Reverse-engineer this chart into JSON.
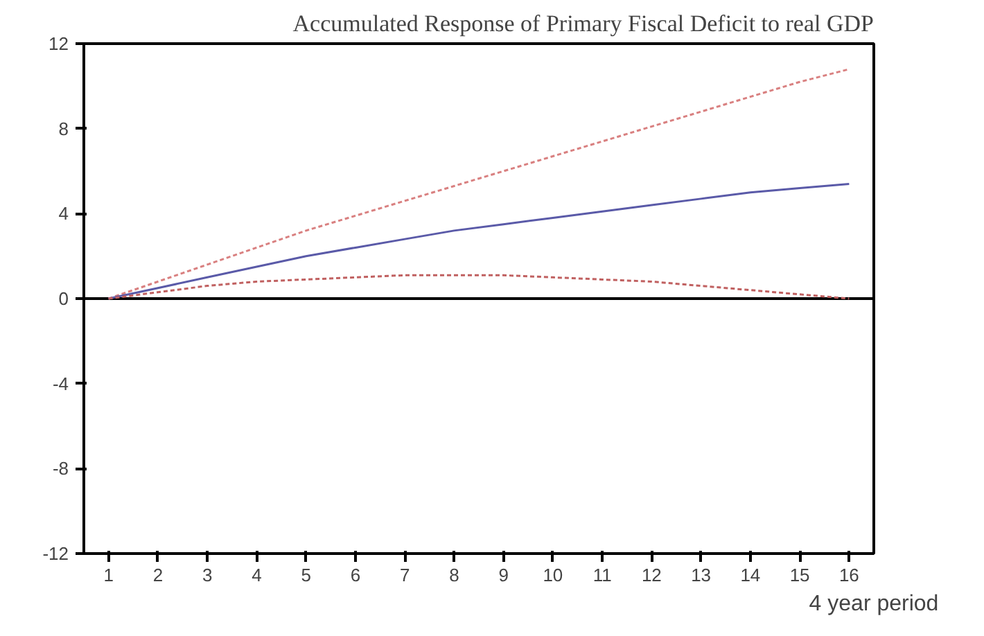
{
  "chart_data": {
    "type": "line",
    "title": "Accumulated Response of Primary Fiscal Deficit to real GDP",
    "xlabel": "4 year period",
    "x": [
      1,
      2,
      3,
      4,
      5,
      6,
      7,
      8,
      9,
      10,
      11,
      12,
      13,
      14,
      15,
      16
    ],
    "xlim": [
      0.5,
      16.5
    ],
    "xticks": [
      1,
      2,
      3,
      4,
      5,
      6,
      7,
      8,
      9,
      10,
      11,
      12,
      13,
      14,
      15,
      16
    ],
    "ylim": [
      -12,
      12
    ],
    "yticks": [
      -12,
      -8,
      -4,
      0,
      4,
      8,
      12
    ],
    "grid": false,
    "marker": "none",
    "ref_lines": [
      {
        "axis": "y",
        "value": 0,
        "color": "#000000",
        "line_style": "solid"
      }
    ],
    "series": [
      {
        "color": "#d98080",
        "line_style": "dashed",
        "values": [
          0,
          0.8,
          1.6,
          2.4,
          3.2,
          3.9,
          4.6,
          5.3,
          6.0,
          6.7,
          7.4,
          8.1,
          8.8,
          9.5,
          10.2,
          10.8
        ]
      },
      {
        "color": "#5a5aa8",
        "line_style": "solid",
        "values": [
          0,
          0.5,
          1.0,
          1.5,
          2.0,
          2.4,
          2.8,
          3.2,
          3.5,
          3.8,
          4.1,
          4.4,
          4.7,
          5.0,
          5.2,
          5.4
        ]
      },
      {
        "color": "#c06060",
        "line_style": "dashed",
        "values": [
          0,
          0.3,
          0.6,
          0.8,
          0.9,
          1.0,
          1.1,
          1.1,
          1.1,
          1.0,
          0.9,
          0.8,
          0.6,
          0.4,
          0.2,
          0.0
        ]
      }
    ]
  }
}
